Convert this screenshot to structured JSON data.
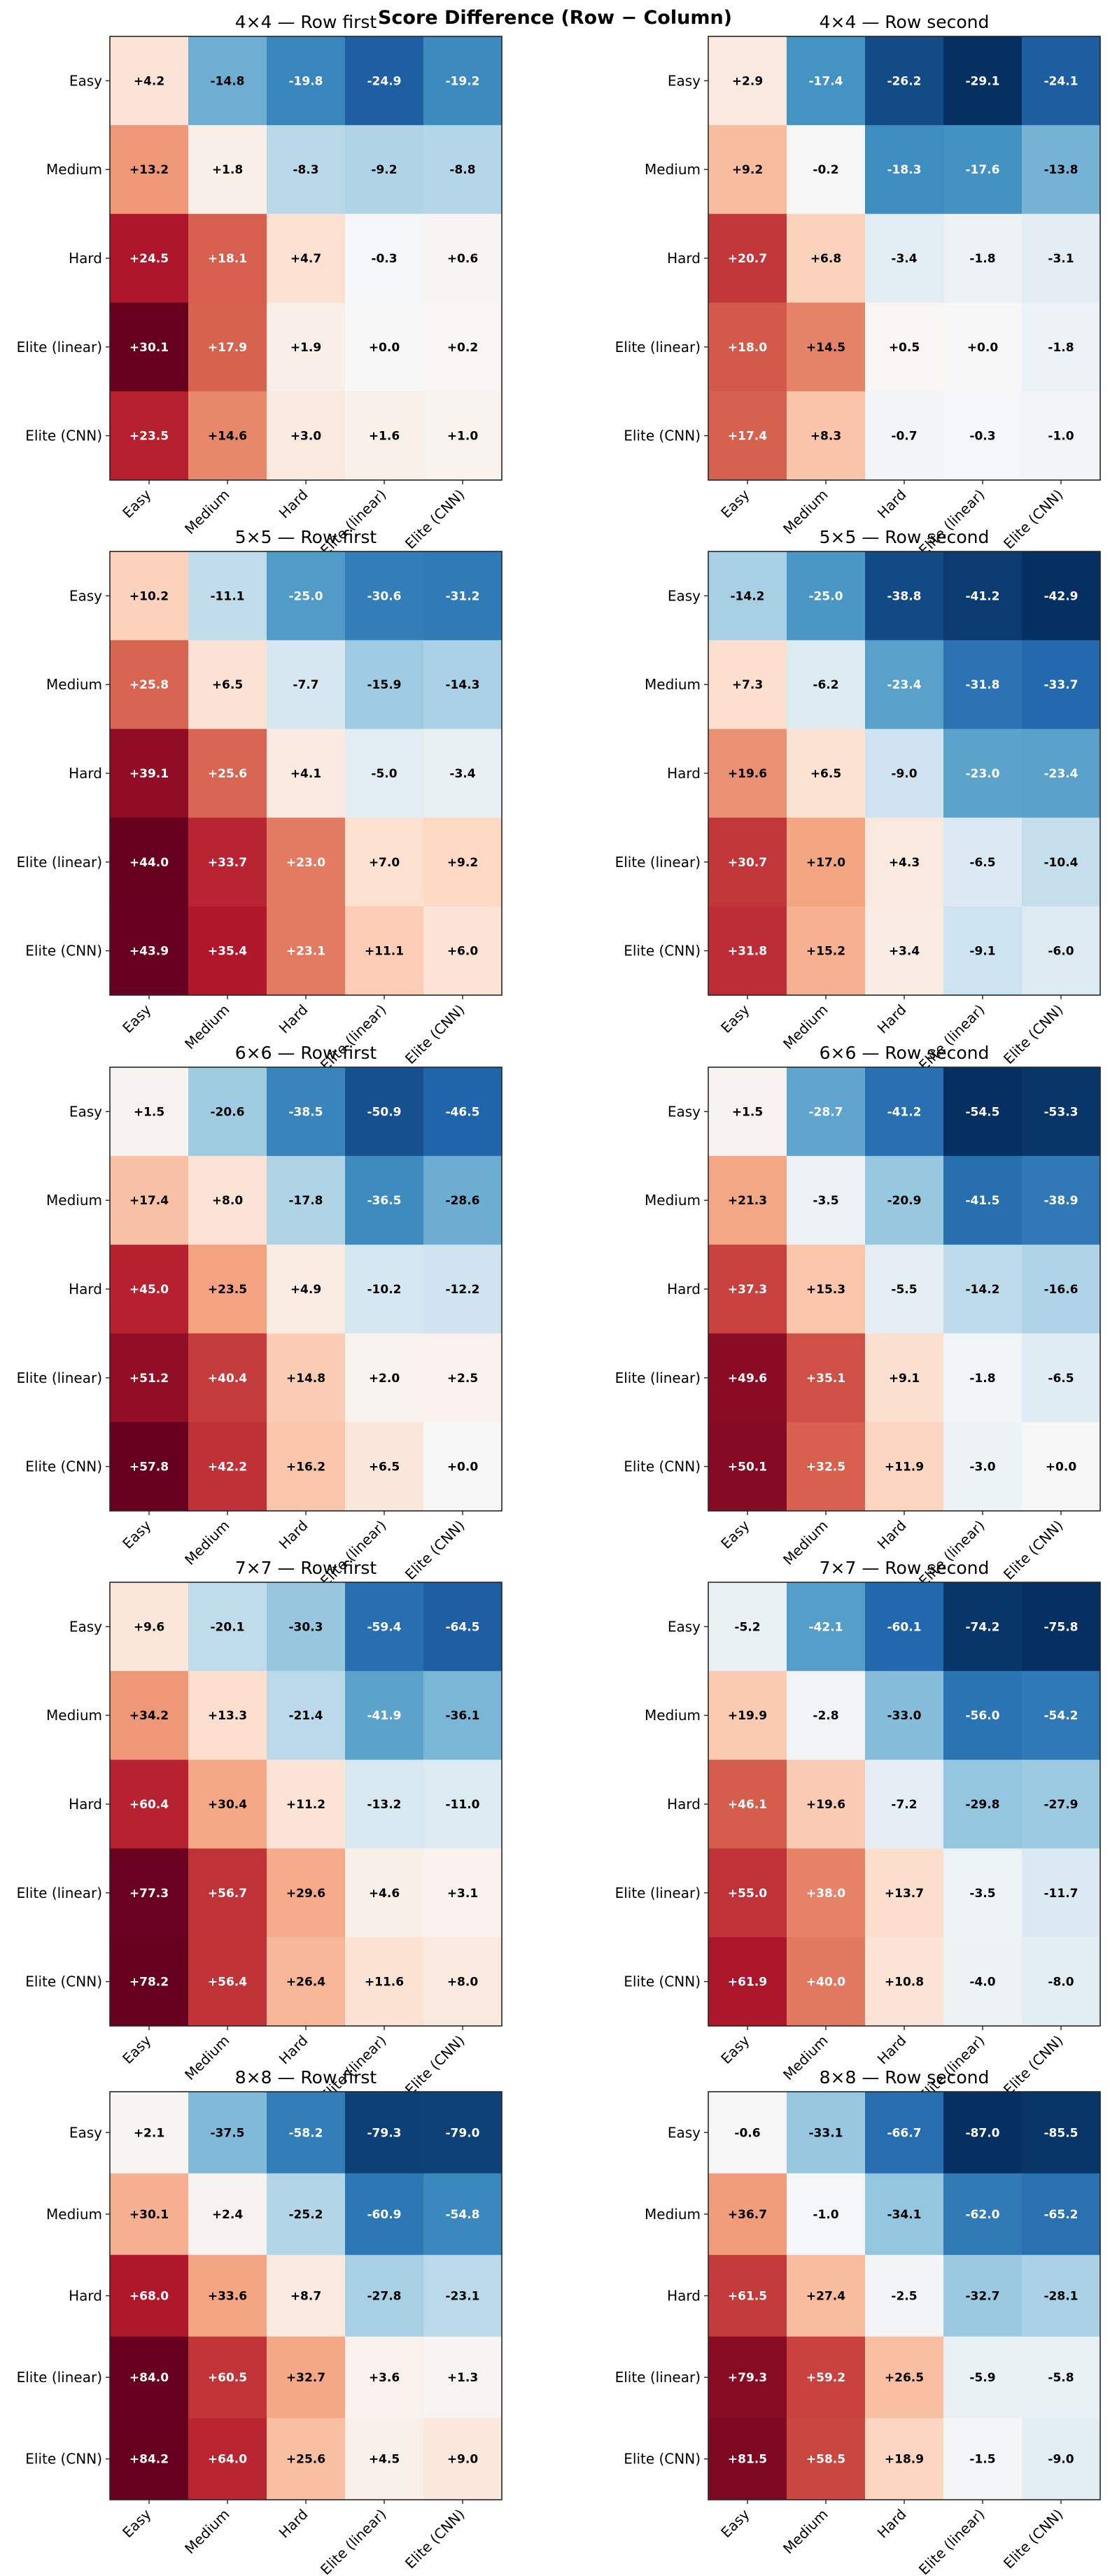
{
  "chart_data": {
    "type": "heatmap",
    "title": "Score Difference (Row − Column)",
    "colormap": "RdBu_r",
    "row_labels": [
      "Easy",
      "Medium",
      "Hard",
      "Elite (linear)",
      "Elite (CNN)"
    ],
    "col_labels": [
      "Easy",
      "Medium",
      "Hard",
      "Elite (linear)",
      "Elite (CNN)"
    ],
    "panels": [
      {
        "title": "4×4 — Row first",
        "board": "4x4",
        "order": "Row first",
        "vlim": [
          -30.1,
          30.1
        ],
        "values": [
          [
            4.2,
            -14.8,
            -19.8,
            -24.9,
            -19.2
          ],
          [
            13.2,
            1.8,
            -8.3,
            -9.2,
            -8.8
          ],
          [
            24.5,
            18.1,
            4.7,
            -0.3,
            0.6
          ],
          [
            30.1,
            17.9,
            1.9,
            0.0,
            0.2
          ],
          [
            23.5,
            14.6,
            3.0,
            1.6,
            1.0
          ]
        ]
      },
      {
        "title": "4×4 — Row second",
        "board": "4x4",
        "order": "Row second",
        "vlim": [
          -29.1,
          29.1
        ],
        "values": [
          [
            2.9,
            -17.4,
            -26.2,
            -29.1,
            -24.1
          ],
          [
            9.2,
            -0.2,
            -18.3,
            -17.6,
            -13.8
          ],
          [
            20.7,
            6.8,
            -3.4,
            -1.8,
            -3.1
          ],
          [
            18.0,
            14.5,
            0.5,
            0.0,
            -1.8
          ],
          [
            17.4,
            8.3,
            -0.7,
            -0.3,
            -1.0
          ]
        ]
      },
      {
        "title": "5×5 — Row first",
        "board": "5x5",
        "order": "Row first",
        "vlim": [
          -44.0,
          44.0
        ],
        "values": [
          [
            10.2,
            -11.1,
            -25.0,
            -30.6,
            -31.2
          ],
          [
            25.8,
            6.5,
            -7.7,
            -15.9,
            -14.3
          ],
          [
            39.1,
            25.6,
            4.1,
            -5.0,
            -3.4
          ],
          [
            44.0,
            33.7,
            23.0,
            7.0,
            9.2
          ],
          [
            43.9,
            35.4,
            23.1,
            11.1,
            6.0
          ]
        ]
      },
      {
        "title": "5×5 — Row second",
        "board": "5x5",
        "order": "Row second",
        "vlim": [
          -42.9,
          42.9
        ],
        "values": [
          [
            -14.2,
            -25.0,
            -38.8,
            -41.2,
            -42.9
          ],
          [
            7.3,
            -6.2,
            -23.4,
            -31.8,
            -33.7
          ],
          [
            19.6,
            6.5,
            -9.0,
            -23.0,
            -23.4
          ],
          [
            30.7,
            17.0,
            4.3,
            -6.5,
            -10.4
          ],
          [
            31.8,
            15.2,
            3.4,
            -9.1,
            -6.0
          ]
        ]
      },
      {
        "title": "6×6 — Row first",
        "board": "6x6",
        "order": "Row first",
        "vlim": [
          -57.8,
          57.8
        ],
        "values": [
          [
            1.5,
            -20.6,
            -38.5,
            -50.9,
            -46.5
          ],
          [
            17.4,
            8.0,
            -17.8,
            -36.5,
            -28.6
          ],
          [
            45.0,
            23.5,
            4.9,
            -10.2,
            -12.2
          ],
          [
            51.2,
            40.4,
            14.8,
            2.0,
            2.5
          ],
          [
            57.8,
            42.2,
            16.2,
            6.5,
            0.0
          ]
        ]
      },
      {
        "title": "6×6 — Row second",
        "board": "6x6",
        "order": "Row second",
        "vlim": [
          -54.5,
          54.5
        ],
        "values": [
          [
            1.5,
            -28.7,
            -41.2,
            -54.5,
            -53.3
          ],
          [
            21.3,
            -3.5,
            -20.9,
            -41.5,
            -38.9
          ],
          [
            37.3,
            15.3,
            -5.5,
            -14.2,
            -16.6
          ],
          [
            49.6,
            35.1,
            9.1,
            -1.8,
            -6.5
          ],
          [
            50.1,
            32.5,
            11.9,
            -3.0,
            0.0
          ]
        ]
      },
      {
        "title": "7×7 — Row first",
        "board": "7x7",
        "order": "Row first",
        "vlim": [
          -78.2,
          78.2
        ],
        "values": [
          [
            9.6,
            -20.1,
            -30.3,
            -59.4,
            -64.5
          ],
          [
            34.2,
            13.3,
            -21.4,
            -41.9,
            -36.1
          ],
          [
            60.4,
            30.4,
            11.2,
            -13.2,
            -11.0
          ],
          [
            77.3,
            56.7,
            29.6,
            4.6,
            3.1
          ],
          [
            78.2,
            56.4,
            26.4,
            11.6,
            8.0
          ]
        ]
      },
      {
        "title": "7×7 — Row second",
        "board": "7x7",
        "order": "Row second",
        "vlim": [
          -75.8,
          75.8
        ],
        "values": [
          [
            -5.2,
            -42.1,
            -60.1,
            -74.2,
            -75.8
          ],
          [
            19.9,
            -2.8,
            -33.0,
            -56.0,
            -54.2
          ],
          [
            46.1,
            19.6,
            -7.2,
            -29.8,
            -27.9
          ],
          [
            55.0,
            38.0,
            13.7,
            -3.5,
            -11.7
          ],
          [
            61.9,
            40.0,
            10.8,
            -4.0,
            -8.0
          ]
        ]
      },
      {
        "title": "8×8 — Row first",
        "board": "8x8",
        "order": "Row first",
        "vlim": [
          -84.2,
          84.2
        ],
        "values": [
          [
            2.1,
            -37.5,
            -58.2,
            -79.3,
            -79.0
          ],
          [
            30.1,
            2.4,
            -25.2,
            -60.9,
            -54.8
          ],
          [
            68.0,
            33.6,
            8.7,
            -27.8,
            -23.1
          ],
          [
            84.0,
            60.5,
            32.7,
            3.6,
            1.3
          ],
          [
            84.2,
            64.0,
            25.6,
            4.5,
            9.0
          ]
        ]
      },
      {
        "title": "8×8 — Row second",
        "board": "8x8",
        "order": "Row second",
        "vlim": [
          -87.0,
          87.0
        ],
        "values": [
          [
            -0.6,
            -33.1,
            -66.7,
            -87.0,
            -85.5
          ],
          [
            36.7,
            -1.0,
            -34.1,
            -62.0,
            -65.2
          ],
          [
            61.5,
            27.4,
            -2.5,
            -32.7,
            -28.1
          ],
          [
            79.3,
            59.2,
            26.5,
            -5.9,
            -5.8
          ],
          [
            81.5,
            58.5,
            18.9,
            -1.5,
            -9.0
          ]
        ]
      }
    ]
  }
}
